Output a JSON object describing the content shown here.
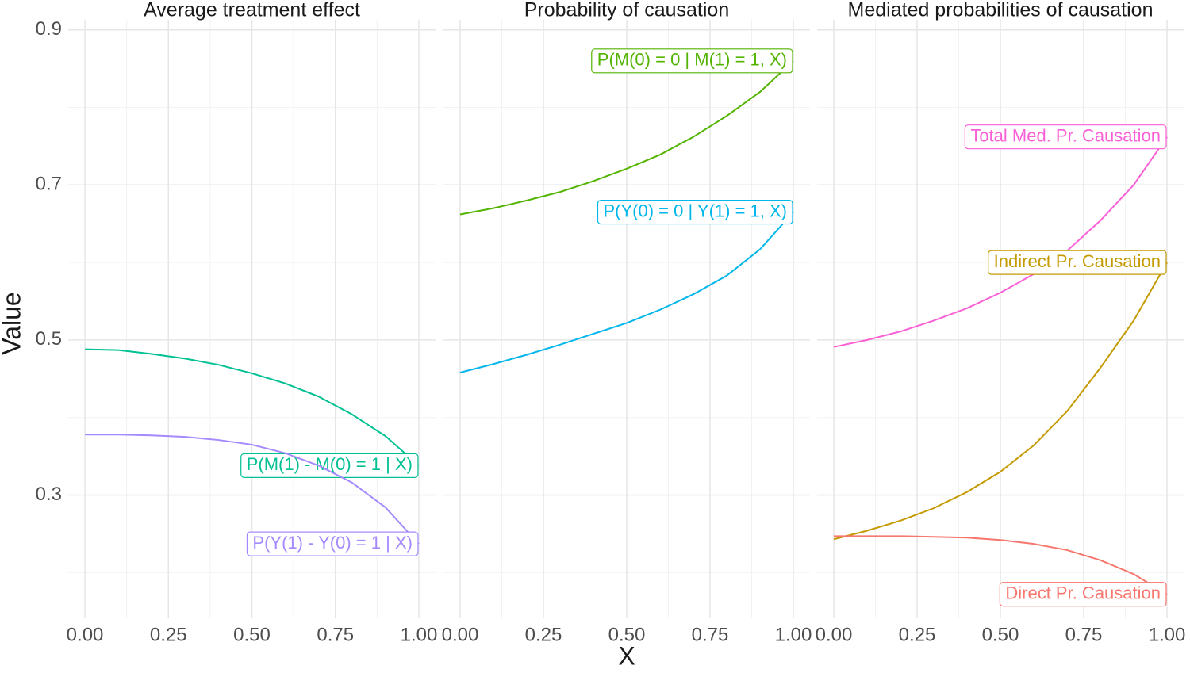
{
  "xlabel": "X",
  "ylabel": "Value",
  "chart_data": [
    {
      "type": "line",
      "title": "Average treatment effect",
      "x": [
        0,
        0.1,
        0.2,
        0.3,
        0.4,
        0.5,
        0.6,
        0.7,
        0.8,
        0.9,
        1.0
      ],
      "series": [
        {
          "name": "P(M(1) - M(0) = 1 | X)",
          "color": "#00C094",
          "values": [
            0.488,
            0.487,
            0.482,
            0.476,
            0.468,
            0.457,
            0.444,
            0.427,
            0.404,
            0.376,
            0.338
          ]
        },
        {
          "name": "P(Y(1) - Y(0) = 1 | X)",
          "color": "#A58AFF",
          "values": [
            0.378,
            0.378,
            0.377,
            0.375,
            0.371,
            0.365,
            0.354,
            0.338,
            0.316,
            0.284,
            0.237
          ]
        }
      ],
      "xlim": [
        -0.05,
        1.05
      ],
      "ylim": [
        0.141,
        0.913
      ],
      "xticks": [
        {
          "value": 0,
          "label": "0.00"
        },
        {
          "value": 0.25,
          "label": "0.25"
        },
        {
          "value": 0.5,
          "label": "0.50"
        },
        {
          "value": 0.75,
          "label": "0.75"
        },
        {
          "value": 1,
          "label": "1.00"
        }
      ],
      "yticks": [
        0.3,
        0.5,
        0.7,
        0.9
      ],
      "show_yticklabels": true,
      "grid": true
    },
    {
      "type": "line",
      "title": "Probability of causation",
      "x": [
        0,
        0.1,
        0.2,
        0.3,
        0.4,
        0.5,
        0.6,
        0.7,
        0.8,
        0.9,
        1.0
      ],
      "series": [
        {
          "name": "P(M(0) = 0 | M(1) = 1, X)",
          "color": "#53B400",
          "values": [
            0.662,
            0.67,
            0.68,
            0.691,
            0.705,
            0.721,
            0.739,
            0.762,
            0.789,
            0.82,
            0.86
          ]
        },
        {
          "name": "P(Y(0) = 0 | Y(1) = 1, X)",
          "color": "#00B6EB",
          "values": [
            0.458,
            0.469,
            0.481,
            0.494,
            0.508,
            0.522,
            0.539,
            0.559,
            0.583,
            0.617,
            0.665
          ]
        }
      ],
      "xlim": [
        -0.05,
        1.05
      ],
      "ylim": [
        0.141,
        0.913
      ],
      "xticks": [
        {
          "value": 0,
          "label": "0.00"
        },
        {
          "value": 0.25,
          "label": "0.25"
        },
        {
          "value": 0.5,
          "label": "0.50"
        },
        {
          "value": 0.75,
          "label": "0.75"
        },
        {
          "value": 1,
          "label": "1.00"
        }
      ],
      "yticks": [
        0.3,
        0.5,
        0.7,
        0.9
      ],
      "show_yticklabels": false,
      "grid": true
    },
    {
      "type": "line",
      "title": "Mediated probabilities of causation",
      "x": [
        0,
        0.1,
        0.2,
        0.3,
        0.4,
        0.5,
        0.6,
        0.7,
        0.8,
        0.9,
        1.0
      ],
      "series": [
        {
          "name": "Total Med. Pr. Causation",
          "color": "#FB61D7",
          "values": [
            0.491,
            0.5,
            0.511,
            0.525,
            0.541,
            0.561,
            0.585,
            0.615,
            0.654,
            0.7,
            0.762
          ]
        },
        {
          "name": "Indirect Pr. Causation",
          "color": "#C49A00",
          "values": [
            0.243,
            0.254,
            0.267,
            0.283,
            0.304,
            0.33,
            0.364,
            0.408,
            0.464,
            0.525,
            0.6
          ]
        },
        {
          "name": "Direct Pr. Causation",
          "color": "#F8766D",
          "values": [
            0.247,
            0.247,
            0.247,
            0.246,
            0.245,
            0.242,
            0.237,
            0.229,
            0.216,
            0.198,
            0.172
          ]
        }
      ],
      "xlim": [
        -0.05,
        1.05
      ],
      "ylim": [
        0.141,
        0.913
      ],
      "xticks": [
        {
          "value": 0,
          "label": "0.00"
        },
        {
          "value": 0.25,
          "label": "0.25"
        },
        {
          "value": 0.5,
          "label": "0.50"
        },
        {
          "value": 0.75,
          "label": "0.75"
        },
        {
          "value": 1,
          "label": "1.00"
        }
      ],
      "yticks": [
        0.3,
        0.5,
        0.7,
        0.9
      ],
      "show_yticklabels": false,
      "grid": true
    }
  ]
}
